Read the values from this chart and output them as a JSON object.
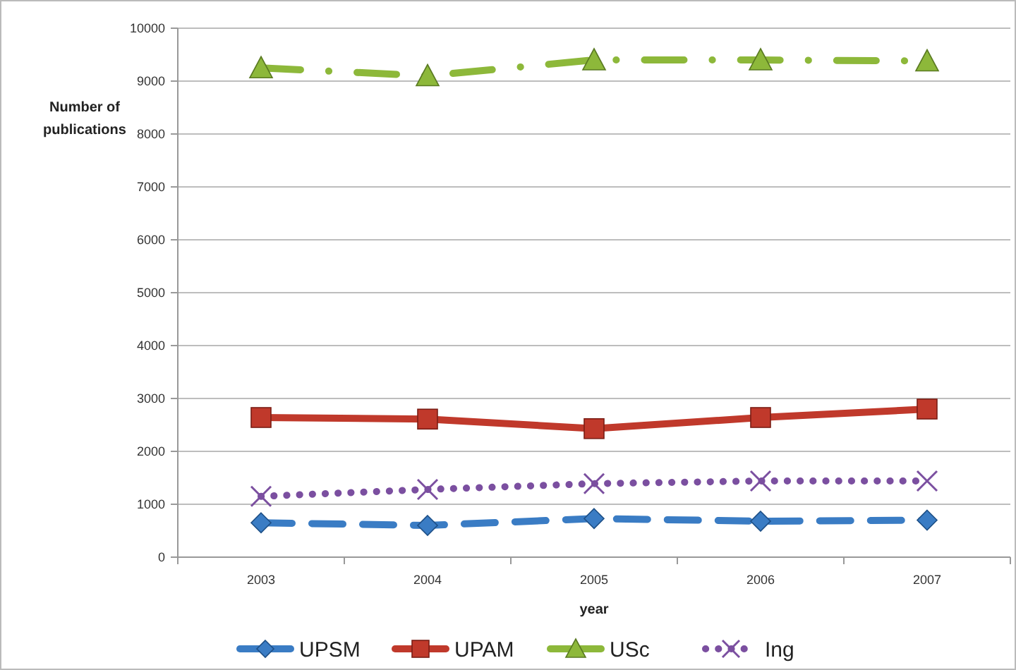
{
  "chart_data": {
    "type": "line",
    "xlabel": "year",
    "ylabel": "Number of publications",
    "categories": [
      "2003",
      "2004",
      "2005",
      "2006",
      "2007"
    ],
    "series": [
      {
        "name": "UPSM",
        "color": "#3a7cc4",
        "values": [
          650,
          600,
          730,
          680,
          700
        ],
        "marker": "diamond",
        "line_style": "dashed"
      },
      {
        "name": "UPAM",
        "color": "#c0392b",
        "values": [
          2640,
          2610,
          2430,
          2640,
          2800
        ],
        "marker": "square",
        "line_style": "solid"
      },
      {
        "name": "USc",
        "color": "#8db83a",
        "values": [
          9250,
          9100,
          9400,
          9400,
          9380
        ],
        "marker": "triangle",
        "line_style": "dashdot"
      },
      {
        "name": "Ing",
        "color": "#7b4fa0",
        "values": [
          1150,
          1280,
          1390,
          1440,
          1440
        ],
        "marker": "cross",
        "line_style": "dotted"
      }
    ],
    "ylim": [
      0,
      10000
    ],
    "yticks": [
      0,
      1000,
      2000,
      3000,
      4000,
      5000,
      6000,
      7000,
      8000,
      9000,
      10000
    ],
    "grid": "y",
    "legend": "bottom"
  }
}
